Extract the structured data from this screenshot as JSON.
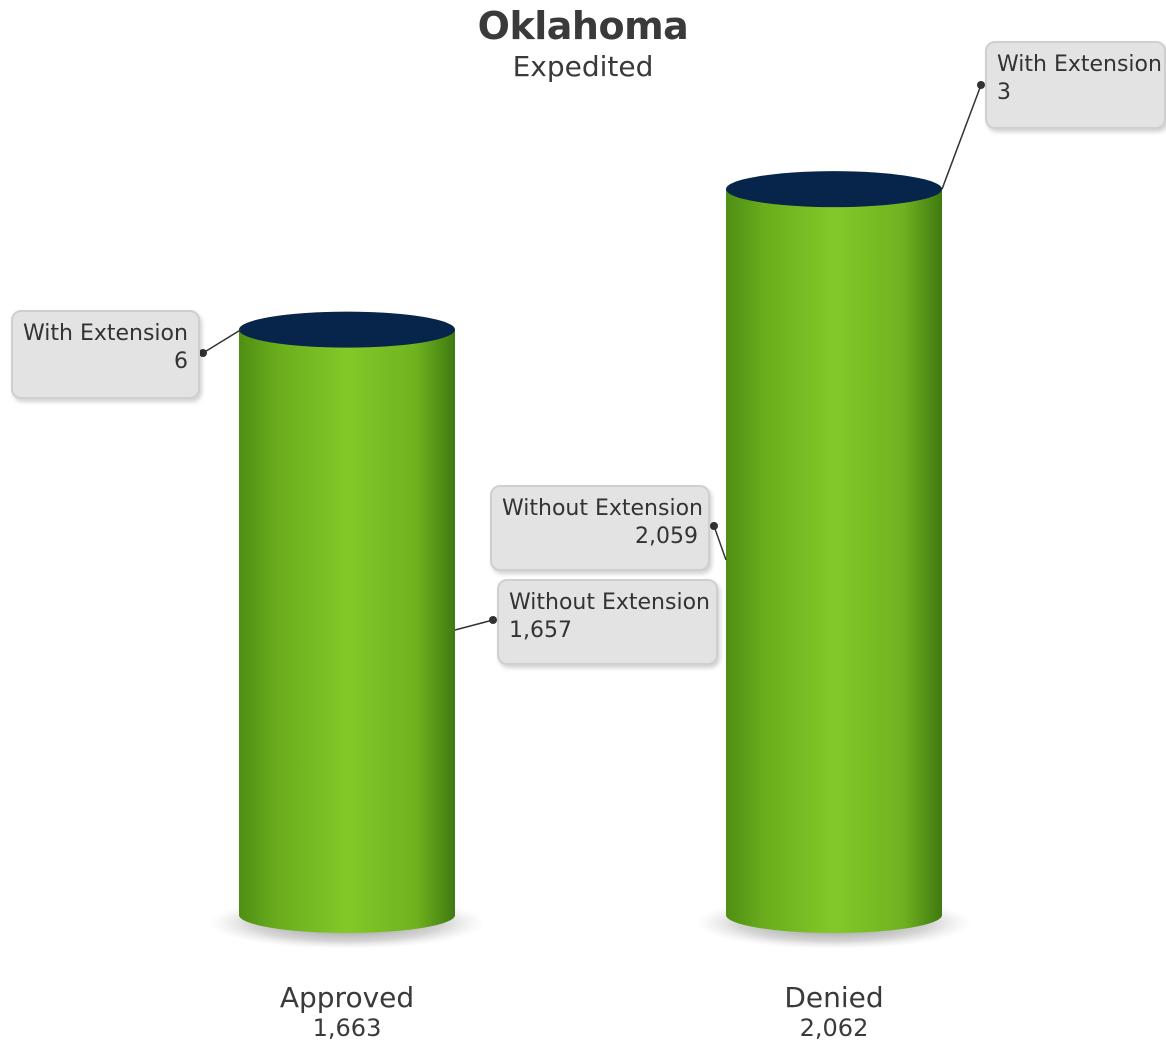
{
  "chart_data": {
    "type": "bar",
    "style": "3d-cylinder",
    "title": "Oklahoma",
    "subtitle": "Expedited",
    "categories": [
      {
        "name": "Approved",
        "total_label": "1,663",
        "total": 1663
      },
      {
        "name": "Denied",
        "total_label": "2,062",
        "total": 2062
      }
    ],
    "series": [
      {
        "name": "Without Extension",
        "values": [
          1657,
          2059
        ],
        "labels": [
          "1,657",
          "2,059"
        ]
      },
      {
        "name": "With Extension",
        "values": [
          6,
          3
        ],
        "labels": [
          "6",
          "3"
        ]
      }
    ],
    "ylim": [
      0,
      2500
    ],
    "grid": false,
    "legend": "none",
    "colors": {
      "bar": "#7cc424",
      "bar_dark": "#4c8a14",
      "bar_top": "#07254a",
      "callout_bg": "#e3e3e3"
    }
  }
}
